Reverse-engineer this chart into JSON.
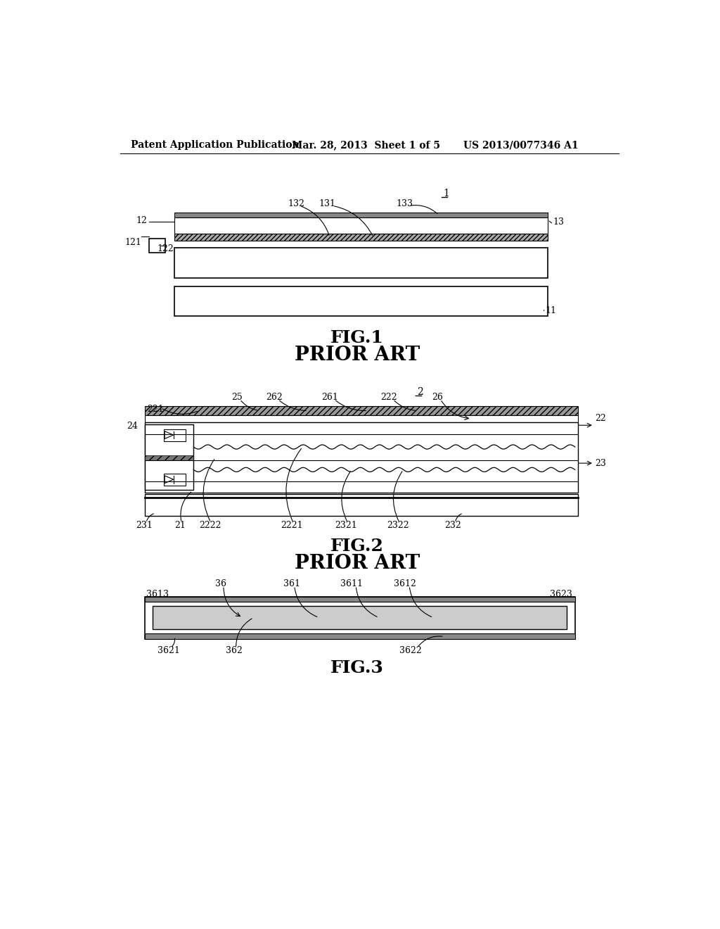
{
  "bg_color": "#ffffff",
  "header_left": "Patent Application Publication",
  "header_mid": "Mar. 28, 2013  Sheet 1 of 5",
  "header_right": "US 2013/0077346 A1",
  "fig1_label": "FIG.1",
  "fig1_sublabel": "PRIOR ART",
  "fig2_label": "FIG.2",
  "fig2_sublabel": "PRIOR ART",
  "fig3_label": "FIG.3",
  "line_color": "#000000",
  "hatch_color_dark": "#888888",
  "hatch_color_mid": "#aaaaaa"
}
